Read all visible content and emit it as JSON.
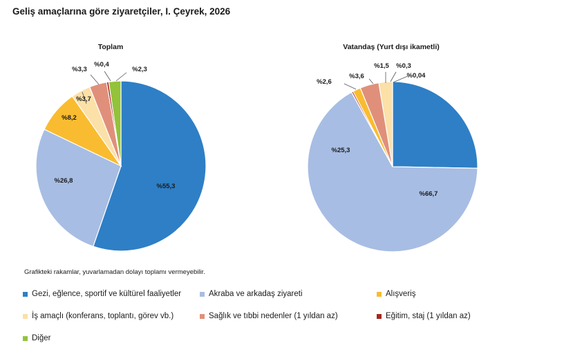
{
  "title": "Geliş amaçlarına göre ziyaretçiler, I. Çeyrek, 2026",
  "footnote": "Grafikteki rakamlar, yuvarlamadan dolayı toplamı vermeyebilir.",
  "legend": [
    {
      "label": "Gezi, eğlence, sportif ve kültürel faaliyetler",
      "color": "#2e7fc6"
    },
    {
      "label": "Akraba ve arkadaş ziyareti",
      "color": "#a7bde3"
    },
    {
      "label": "Alışveriş",
      "color": "#f9bc30"
    },
    {
      "label": "İş amaçlı (konferans, toplantı, görev vb.)",
      "color": "#fbe0a8"
    },
    {
      "label": "Sağlık ve tıbbi nedenler (1 yıldan az)",
      "color": "#e0907a"
    },
    {
      "label": "Eğitim, staj (1 yıldan az)",
      "color": "#a8251c"
    },
    {
      "label": "Diğer",
      "color": "#92c33a"
    }
  ],
  "chart_data": [
    {
      "type": "pie",
      "title": "Toplam",
      "categories": [
        "Gezi, eğlence, sportif ve kültürel faaliyetler",
        "Akraba ve arkadaş ziyareti",
        "Alışveriş",
        "İş amaçlı (konferans, toplantı, görev vb.)",
        "Sağlık ve tıbbi nedenler (1 yıldan az)",
        "Eğitim, staj (1 yıldan az)",
        "Diğer"
      ],
      "values": [
        55.3,
        26.8,
        8.2,
        3.7,
        3.3,
        0.4,
        2.3
      ],
      "labels": [
        "%55,3",
        "%26,8",
        "%8,2",
        "%3,7",
        "%3,3",
        "%0,4",
        "%2,3"
      ]
    },
    {
      "type": "pie",
      "title": "Vatandaş (Yurt dışı ikametli)",
      "categories": [
        "Gezi, eğlence, sportif ve kültürel faaliyetler",
        "Akraba ve arkadaş ziyareti",
        "Alışveriş",
        "İş amaçlı (konferans, toplantı, görev vb.)",
        "Sağlık ve tıbbi nedenler (1 yıldan az)",
        "Eğitim, staj (1 yıldan az)",
        "Diğer"
      ],
      "values": [
        25.3,
        66.7,
        1.5,
        2.6,
        3.6,
        0.3,
        0.04
      ],
      "labels": [
        "%25,3",
        "%66,7",
        "%1,5",
        "%2,6",
        "%3,6",
        "%0,3",
        "%0,04"
      ]
    }
  ]
}
